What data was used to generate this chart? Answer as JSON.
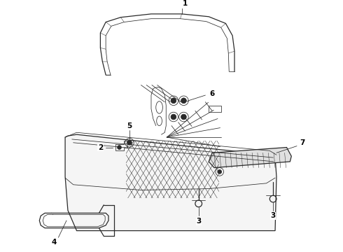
{
  "background_color": "#ffffff",
  "line_color": "#2a2a2a",
  "fig_width": 4.9,
  "fig_height": 3.6,
  "dpi": 100,
  "label_fontsize": 7.5,
  "lw_main": 0.9,
  "lw_thin": 0.55,
  "lw_hair": 0.35
}
